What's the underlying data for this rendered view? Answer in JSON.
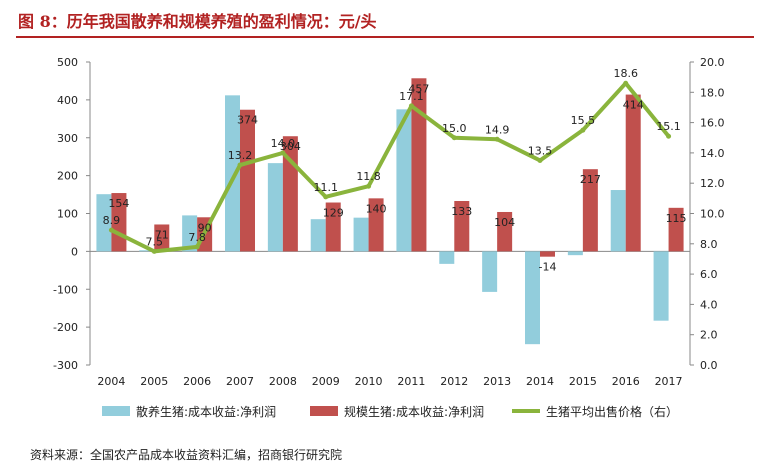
{
  "page": {
    "title": "图 8：历年我国散养和规模养殖的盈利情况：元/头",
    "source": "资料来源：全国农产品成本收益资料汇编，招商银行研究院"
  },
  "colors": {
    "series1": "#92cddc",
    "series2": "#c0504d",
    "series3": "#8ab43c",
    "title": "#b22222"
  },
  "chart_data": {
    "type": "bar",
    "categories": [
      "2004",
      "2005",
      "2006",
      "2007",
      "2008",
      "2009",
      "2010",
      "2011",
      "2012",
      "2013",
      "2014",
      "2015",
      "2016",
      "2017"
    ],
    "series": [
      {
        "name": "散养生猪:成本收益:净利润",
        "type": "bar",
        "axis": "left",
        "values": [
          151,
          3,
          95,
          412,
          233,
          85,
          89,
          375,
          -33,
          -107,
          -245,
          -10,
          162,
          -183
        ]
      },
      {
        "name": "规模生猪:成本收益:净利润",
        "type": "bar",
        "axis": "left",
        "values": [
          154,
          71,
          90,
          374,
          304,
          129,
          140,
          457,
          133,
          104,
          -14,
          217,
          414,
          115
        ]
      },
      {
        "name": "生猪平均出售价格（右）",
        "type": "line",
        "axis": "right",
        "values": [
          8.9,
          7.5,
          7.8,
          13.2,
          14.0,
          11.1,
          11.8,
          17.1,
          15.0,
          14.9,
          13.5,
          15.5,
          18.6,
          15.1
        ]
      }
    ],
    "bar_labels": [
      "154",
      "71",
      "90",
      "374",
      "304",
      "129",
      "140",
      "457",
      "133",
      "104",
      "-14",
      "217",
      "414",
      "115"
    ],
    "line_labels": [
      "8.9",
      "7.5",
      "7.8",
      "13.2",
      "14.0",
      "11.1",
      "11.8",
      "17.1",
      "15.0",
      "14.9",
      "13.5",
      "15.5",
      "18.6",
      "15.1"
    ],
    "y_left": {
      "min": -300,
      "max": 500,
      "ticks": [
        "500",
        "400",
        "300",
        "200",
        "100",
        "0",
        "-100",
        "-200",
        "-300"
      ]
    },
    "y_right": {
      "min": 0,
      "max": 20,
      "ticks": [
        "20.0",
        "18.0",
        "16.0",
        "14.0",
        "12.0",
        "10.0",
        "8.0",
        "6.0",
        "4.0",
        "2.0",
        "0.0"
      ]
    },
    "legend_position": "bottom",
    "grid": false
  }
}
